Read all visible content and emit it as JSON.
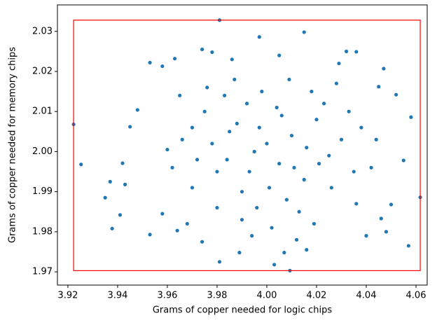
{
  "chart_data": {
    "type": "scatter",
    "xlabel": "Grams of copper needed for logic chips",
    "ylabel": "Grams of copper needed for memory chips",
    "color": "#1f77b4",
    "x": [
      3.9223,
      3.9253,
      3.981,
      4.0093,
      4.0617,
      4.057,
      3.9378,
      3.937,
      3.953,
      4.058,
      4.047,
      4.015,
      3.997,
      3.963,
      3.981,
      4.003,
      3.942,
      3.945,
      3.948,
      4.05,
      4.055,
      3.935,
      3.941,
      3.943,
      3.953,
      3.958,
      3.974,
      3.978,
      4.032,
      4.036,
      4.045,
      4.052,
      4.046,
      4.048,
      4.04,
      3.974,
      3.989,
      4.007,
      4.016,
      3.958,
      3.964,
      3.968,
      3.96,
      3.962,
      3.97,
      3.975,
      3.98,
      3.985,
      3.99,
      3.995,
      4.0,
      4.005,
      4.01,
      4.015,
      4.02,
      4.025,
      4.03,
      4.035,
      3.992,
      3.998,
      4.004,
      4.009,
      3.987,
      3.983,
      3.976,
      4.018,
      4.023,
      4.028,
      3.99,
      3.996,
      4.002,
      4.008,
      4.013,
      4.019,
      3.98,
      3.97,
      3.966,
      3.972,
      4.026,
      4.033,
      4.038,
      4.042,
      4.044,
      3.978,
      3.984,
      3.988,
      3.993,
      3.997,
      4.001,
      4.006,
      4.011,
      4.016,
      4.021,
      3.986,
      4.005,
      4.012,
      3.994,
      3.965,
      4.036,
      4.029
    ],
    "values": [
      2.0068,
      1.9968,
      2.0328,
      1.9703,
      1.9886,
      1.9765,
      1.9808,
      1.9925,
      1.9793,
      2.0086,
      2.0207,
      2.0298,
      2.0286,
      2.0232,
      1.9725,
      1.9718,
      1.9971,
      2.0062,
      2.0104,
      1.9868,
      1.9978,
      1.9885,
      1.9842,
      1.9918,
      2.0222,
      2.0213,
      2.0255,
      2.0248,
      2.025,
      2.0249,
      2.0162,
      2.0142,
      1.9833,
      1.98,
      1.979,
      1.9775,
      1.9748,
      1.9748,
      1.9755,
      1.9845,
      1.9803,
      1.982,
      2.0005,
      1.996,
      2.006,
      2.01,
      1.995,
      2.005,
      1.99,
      2.0,
      2.002,
      1.997,
      2.004,
      1.993,
      2.008,
      1.999,
      2.003,
      1.995,
      2.012,
      2.015,
      2.011,
      2.018,
      2.018,
      2.014,
      2.016,
      2.015,
      2.012,
      2.017,
      1.983,
      1.986,
      1.981,
      1.988,
      1.985,
      1.982,
      1.986,
      1.991,
      2.003,
      1.998,
      1.991,
      2.01,
      2.006,
      1.996,
      2.003,
      2.002,
      1.998,
      2.007,
      1.995,
      2.006,
      1.991,
      2.009,
      1.996,
      2.001,
      1.997,
      2.023,
      2.024,
      1.978,
      1.979,
      2.014,
      1.987,
      2.022
    ],
    "box": {
      "x": [
        3.9223,
        4.0617
      ],
      "y": [
        1.9703,
        2.0328
      ],
      "color": "#ff0000"
    },
    "xlim": [
      3.9158,
      4.0645
    ],
    "ylim": [
      1.9667,
      2.0366
    ],
    "xticks": [
      {
        "value": 3.92,
        "label": "3.92"
      },
      {
        "value": 3.94,
        "label": "3.94"
      },
      {
        "value": 3.96,
        "label": "3.96"
      },
      {
        "value": 3.98,
        "label": "3.98"
      },
      {
        "value": 4.0,
        "label": "4.00"
      },
      {
        "value": 4.02,
        "label": "4.02"
      },
      {
        "value": 4.04,
        "label": "4.04"
      },
      {
        "value": 4.06,
        "label": "4.06"
      }
    ],
    "yticks": [
      {
        "value": 1.97,
        "label": "1.97"
      },
      {
        "value": 1.98,
        "label": "1.98"
      },
      {
        "value": 1.99,
        "label": "1.99"
      },
      {
        "value": 2.0,
        "label": "2.00"
      },
      {
        "value": 2.01,
        "label": "2.01"
      },
      {
        "value": 2.02,
        "label": "2.02"
      },
      {
        "value": 2.03,
        "label": "2.03"
      }
    ]
  }
}
